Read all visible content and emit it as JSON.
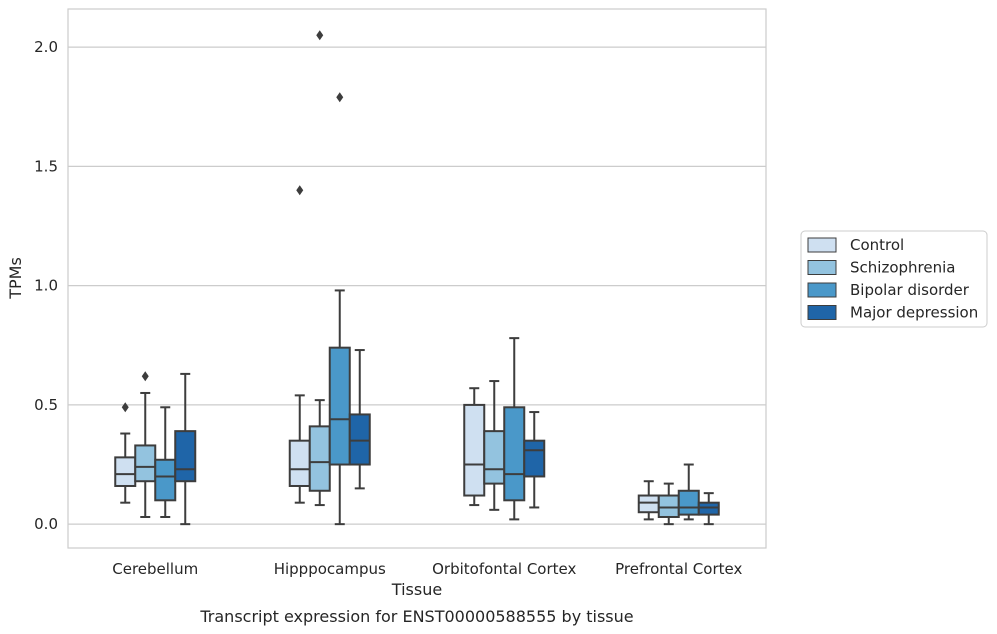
{
  "chart_data": {
    "type": "boxplot",
    "xlabel": "Tissue",
    "ylabel": "TPMs",
    "caption": "Transcript expression for ENST00000588555 by tissue",
    "ylim": [
      -0.1,
      2.16
    ],
    "yticks": [
      "0.0",
      "0.5",
      "1.0",
      "1.5",
      "2.0"
    ],
    "grid": "horizontal",
    "legend_position": "right",
    "categories": [
      "Cerebellum",
      "Hipppocampus",
      "Orbitofontal Cortex",
      "Prefrontal Cortex"
    ],
    "series": [
      {
        "name": "Control",
        "color": "#cfe0f1",
        "boxes": [
          {
            "whislo": 0.09,
            "q1": 0.16,
            "med": 0.21,
            "q3": 0.28,
            "whishi": 0.38,
            "fliers": [
              0.49
            ]
          },
          {
            "whislo": 0.09,
            "q1": 0.16,
            "med": 0.23,
            "q3": 0.35,
            "whishi": 0.54,
            "fliers": [
              1.4
            ]
          },
          {
            "whislo": 0.08,
            "q1": 0.12,
            "med": 0.25,
            "q3": 0.5,
            "whishi": 0.57,
            "fliers": []
          },
          {
            "whislo": 0.02,
            "q1": 0.05,
            "med": 0.09,
            "q3": 0.12,
            "whishi": 0.18,
            "fliers": []
          }
        ]
      },
      {
        "name": "Schizophrenia",
        "color": "#93c3df",
        "boxes": [
          {
            "whislo": 0.03,
            "q1": 0.18,
            "med": 0.24,
            "q3": 0.33,
            "whishi": 0.55,
            "fliers": [
              0.62
            ]
          },
          {
            "whislo": 0.08,
            "q1": 0.14,
            "med": 0.26,
            "q3": 0.41,
            "whishi": 0.52,
            "fliers": [
              2.05
            ]
          },
          {
            "whislo": 0.06,
            "q1": 0.17,
            "med": 0.23,
            "q3": 0.39,
            "whishi": 0.6,
            "fliers": []
          },
          {
            "whislo": 0.0,
            "q1": 0.03,
            "med": 0.07,
            "q3": 0.12,
            "whishi": 0.17,
            "fliers": []
          }
        ]
      },
      {
        "name": "Bipolar disorder",
        "color": "#4a98c9",
        "boxes": [
          {
            "whislo": 0.03,
            "q1": 0.1,
            "med": 0.2,
            "q3": 0.27,
            "whishi": 0.49,
            "fliers": []
          },
          {
            "whislo": 0.0,
            "q1": 0.25,
            "med": 0.44,
            "q3": 0.74,
            "whishi": 0.98,
            "fliers": [
              1.79
            ]
          },
          {
            "whislo": 0.02,
            "q1": 0.1,
            "med": 0.21,
            "q3": 0.49,
            "whishi": 0.78,
            "fliers": []
          },
          {
            "whislo": 0.02,
            "q1": 0.04,
            "med": 0.07,
            "q3": 0.14,
            "whishi": 0.25,
            "fliers": []
          }
        ]
      },
      {
        "name": "Major depression",
        "color": "#1f65a8",
        "boxes": [
          {
            "whislo": 0.0,
            "q1": 0.18,
            "med": 0.23,
            "q3": 0.39,
            "whishi": 0.63,
            "fliers": []
          },
          {
            "whislo": 0.15,
            "q1": 0.25,
            "med": 0.35,
            "q3": 0.46,
            "whishi": 0.73,
            "fliers": []
          },
          {
            "whislo": 0.07,
            "q1": 0.2,
            "med": 0.31,
            "q3": 0.35,
            "whishi": 0.47,
            "fliers": []
          },
          {
            "whislo": 0.0,
            "q1": 0.04,
            "med": 0.07,
            "q3": 0.09,
            "whishi": 0.13,
            "fliers": []
          }
        ]
      }
    ]
  }
}
